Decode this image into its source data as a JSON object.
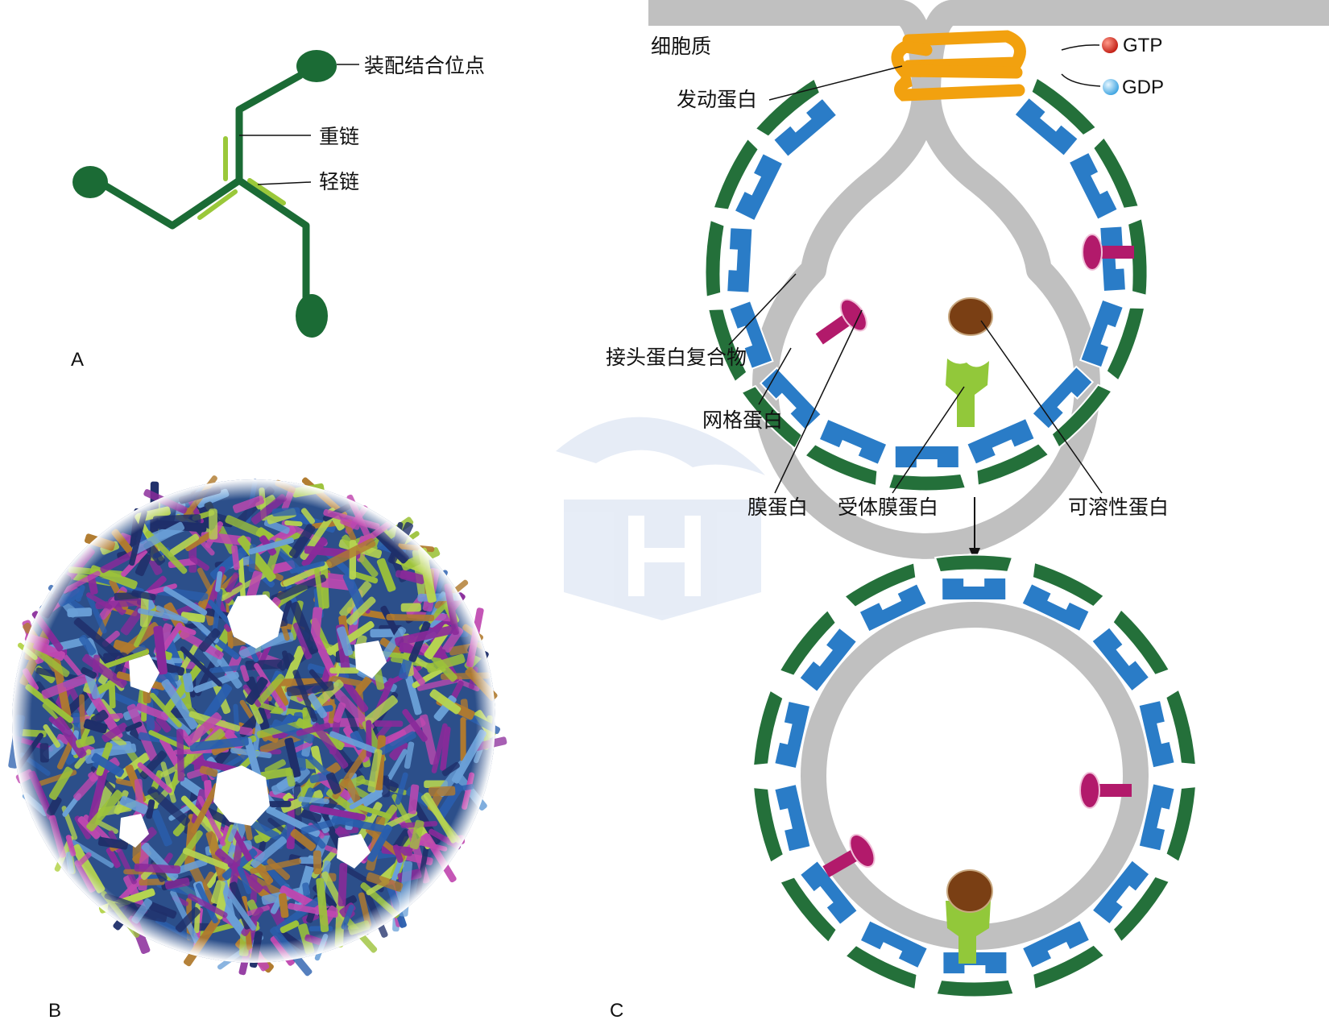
{
  "panels": {
    "a": "A",
    "b": "B",
    "c": "C"
  },
  "panel_a": {
    "assembly_site": "装配结合位点",
    "heavy_chain": "重链",
    "light_chain": "轻链"
  },
  "panel_c": {
    "cytoplasm": "细胞质",
    "dynamin": "发动蛋白",
    "gtp": "GTP",
    "gdp": "GDP",
    "adaptor_complex": "接头蛋白复合物",
    "clathrin": "网格蛋白",
    "membrane_protein": "膜蛋白",
    "receptor_protein": "受体膜蛋白",
    "soluble_protein": "可溶性蛋白"
  },
  "colors": {
    "heavy_chain": "#1b6b35",
    "light_chain": "#9ac83a",
    "membrane": "#c0c0c0",
    "dynamin": "#f2a10f",
    "adaptor": "#2a7cc7",
    "clathrin": "#24703a",
    "membrane_protein": "#b21a6b",
    "receptor": "#92c83a",
    "soluble": "#7a3f14",
    "gtp": "#d92b1e",
    "gdp": "#5ab7ea"
  }
}
